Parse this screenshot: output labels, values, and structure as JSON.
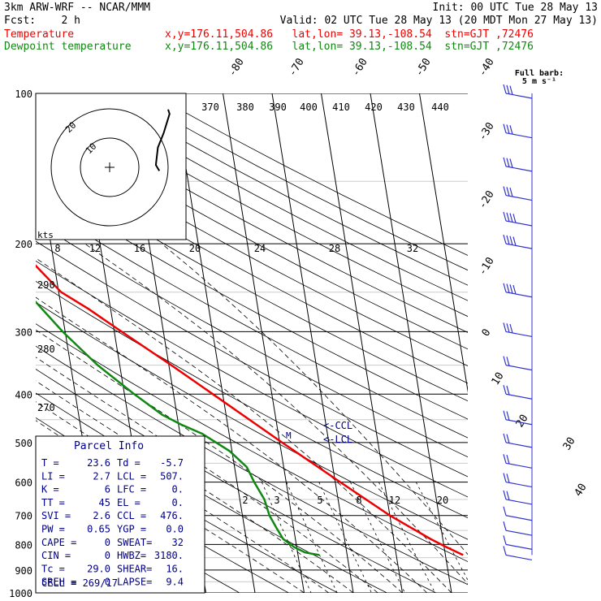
{
  "header": {
    "model": "3km ARW-WRF -- NCAR/MMM",
    "init": "Init: 00 UTC Tue 28 May 13",
    "fcst": "Fcst:    2 h",
    "valid": "Valid: 02 UTC Tue 28 May 13 (20 MDT Mon 27 May 13)",
    "temp_label": "Temperature",
    "dew_label": "Dewpoint temperature",
    "temp_loc": "x,y=176.11,504.86   lat,lon= 39.13,-108.54  stn=GJT ,72476",
    "dew_loc": "x,y=176.11,504.86   lat,lon= 39.13,-108.54  stn=GJT ,72476"
  },
  "colors": {
    "temperature": "#ee0000",
    "dewpoint": "#118811",
    "text": "#000088",
    "barbs": "#3333cc"
  },
  "pressure_labels": [
    "100",
    "200",
    "300",
    "400",
    "500",
    "600",
    "700",
    "800",
    "900",
    "1000"
  ],
  "isotherm_labels": [
    "-80",
    "-70",
    "-60",
    "-50",
    "-40",
    "-30",
    "-20",
    "-10",
    "0",
    "10",
    "20",
    "30",
    "40"
  ],
  "theta_labels": [
    "370",
    "380",
    "390",
    "400",
    "410",
    "420",
    "430",
    "440"
  ],
  "theta_e_labels": [
    "290",
    "280",
    "270"
  ],
  "mixing_ratio_labels": [
    "2",
    "3",
    "5",
    "8",
    "12",
    "20"
  ],
  "hodograph": {
    "unit": "kts",
    "ring_labels": [
      "10",
      "20"
    ],
    "speed_ticks": [
      "8",
      "12",
      "16",
      "20",
      "24",
      "28",
      "32"
    ]
  },
  "barb_legend": {
    "title": "Full barb:",
    "value": "5 m s⁻¹"
  },
  "parcel": {
    "markers": {
      "ccl": "<-CCL",
      "lcl": "<-LCL",
      "m": "M"
    },
    "title": "Parcel Info",
    "rows": [
      [
        "T  =",
        "23.6",
        "Td =",
        "-5.7"
      ],
      [
        "LI =",
        "2.7",
        "LCL =",
        "507."
      ],
      [
        "K  =",
        "6",
        "LFC =",
        "0."
      ],
      [
        "TT =",
        "45",
        "EL =",
        "0."
      ],
      [
        "SVI =",
        "2.6",
        "CCL =",
        "476."
      ],
      [
        "PW =",
        "0.65",
        "YGP =",
        "0.0"
      ],
      [
        "CAPE =",
        "0",
        "SWEAT=",
        "32"
      ],
      [
        "CIN =",
        "0",
        "HWBZ=",
        "3180."
      ],
      [
        "Tc =",
        "29.0",
        "SHEAR=",
        "16."
      ],
      [
        "SREH =",
        "0",
        "LAPSE=",
        "9.4"
      ]
    ],
    "cell": "CELL = 269/17"
  },
  "chart_data": {
    "type": "line",
    "title": "",
    "xlabel": "",
    "ylabel": "",
    "pressure_axis": "log",
    "ylim": [
      1000,
      100
    ],
    "series": [
      {
        "name": "Temperature",
        "pressure": [
          840,
          810,
          780,
          700,
          600,
          500,
          400,
          350,
          300,
          270,
          250,
          220,
          200,
          170,
          150,
          130,
          110,
          100
        ],
        "values": [
          23.6,
          20.5,
          17.5,
          10.0,
          1.0,
          -9.5,
          -22.0,
          -29.5,
          -38.5,
          -44.5,
          -49.5,
          -54.0,
          -56.0,
          -58.0,
          -60.0,
          -62.0,
          -64.0,
          -65.0
        ]
      },
      {
        "name": "Dewpoint temperature",
        "pressure": [
          840,
          830,
          810,
          780,
          740,
          700,
          650,
          600,
          560,
          520,
          480,
          460,
          440,
          400,
          350,
          300,
          250,
          200,
          170,
          150,
          130,
          110,
          100
        ],
        "values": [
          -5.7,
          -8.5,
          -10.5,
          -12.5,
          -13.5,
          -14.5,
          -15.0,
          -16.5,
          -17.5,
          -20.5,
          -25.5,
          -29.5,
          -33.0,
          -38.0,
          -44.5,
          -50.5,
          -56.5,
          -62.5,
          -66.5,
          -70.0,
          -72.0,
          -74.0,
          -75.0
        ]
      }
    ],
    "hodograph_line": {
      "u": [
        3,
        3.5,
        1.5,
        -0.5,
        -1.2,
        0
      ],
      "v": [
        -17,
        -15.5,
        -9,
        -4,
        2,
        4
      ]
    },
    "wind_barbs": {
      "pressure": [
        100,
        120,
        140,
        160,
        180,
        200,
        250,
        300,
        350,
        400,
        450,
        500,
        550,
        600,
        650,
        700,
        750,
        800,
        840
      ],
      "speed_ms": [
        15,
        15,
        15,
        15,
        20,
        20,
        20,
        15,
        10,
        10,
        10,
        10,
        10,
        10,
        10,
        5,
        5,
        5,
        5
      ]
    }
  }
}
